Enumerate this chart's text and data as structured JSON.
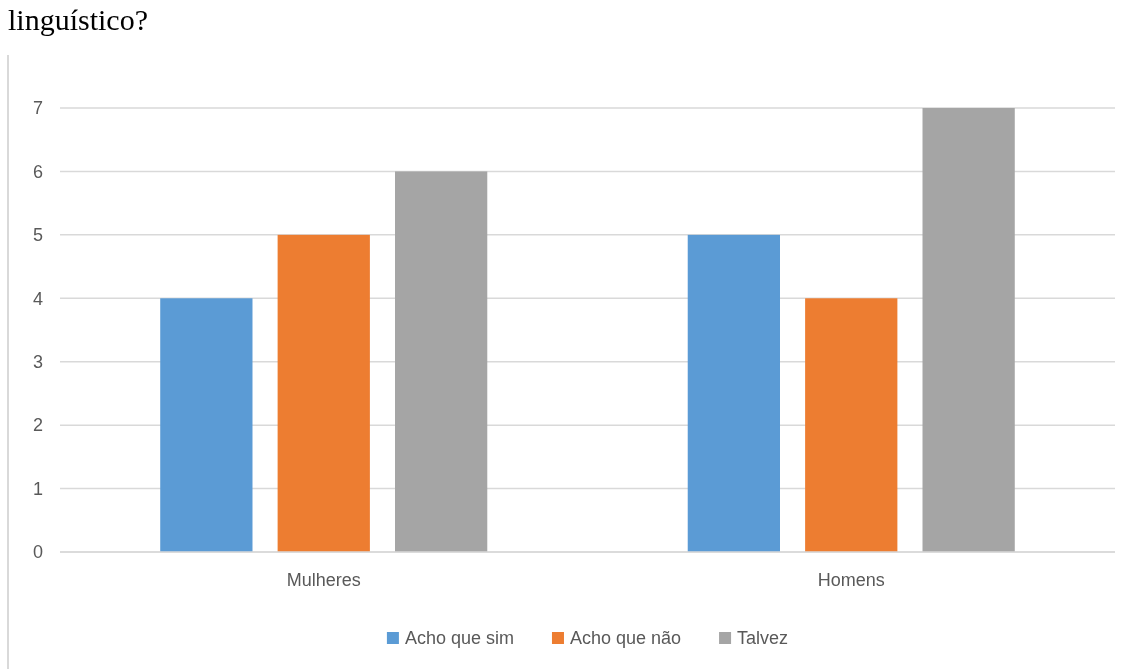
{
  "chart_data": {
    "type": "bar",
    "title": "linguístico?",
    "categories": [
      "Mulheres",
      "Homens"
    ],
    "series": [
      {
        "name": "Acho que sim",
        "color": "#5b9bd5",
        "values": [
          4,
          5
        ]
      },
      {
        "name": "Acho que não",
        "color": "#ed7d31",
        "values": [
          5,
          4
        ]
      },
      {
        "name": "Talvez",
        "color": "#a5a5a5",
        "values": [
          6,
          7
        ]
      }
    ],
    "ylim": [
      0,
      7
    ],
    "yticks": [
      0,
      1,
      2,
      3,
      4,
      5,
      6,
      7
    ],
    "grid": "y",
    "legend": "bottom"
  }
}
